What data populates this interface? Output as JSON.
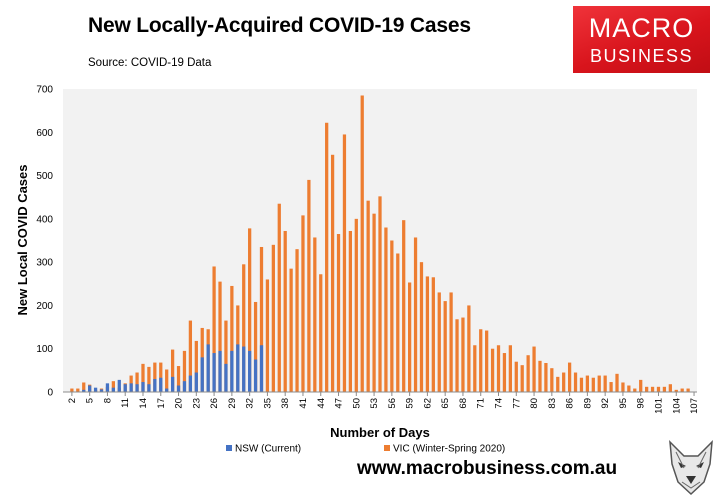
{
  "title": "New Locally-Acquired COVID-19 Cases",
  "subtitle": "Source: COVID-19 Data",
  "logo": {
    "line1": "MACRO",
    "line2": "BUSINESS"
  },
  "footer_url": "www.macrobusiness.com.au",
  "colors": {
    "nsw": "#4472c4",
    "vic": "#ed7d31",
    "plot_bg": "#f2f2f2",
    "logo_red": "#e3232a"
  },
  "chart_data": {
    "type": "bar",
    "xlabel": "Number of Days",
    "ylabel": "New Local COVID Cases",
    "ylim": [
      0,
      700
    ],
    "yticks": [
      0,
      100,
      200,
      300,
      400,
      500,
      600,
      700
    ],
    "x_range": [
      1,
      107
    ],
    "xticks": [
      2,
      5,
      8,
      11,
      14,
      17,
      20,
      23,
      26,
      29,
      32,
      35,
      38,
      41,
      44,
      47,
      50,
      53,
      56,
      59,
      62,
      65,
      68,
      71,
      74,
      77,
      80,
      83,
      86,
      89,
      92,
      95,
      98,
      101,
      104,
      107
    ],
    "legend_position": "bottom",
    "series": [
      {
        "name": "NSW (Current)",
        "color": "#4472c4",
        "x": [
          1,
          2,
          3,
          4,
          5,
          6,
          7,
          8,
          9,
          10,
          11,
          12,
          13,
          14,
          15,
          16,
          17,
          18,
          19,
          20,
          21,
          22,
          23,
          24,
          25,
          26,
          27,
          28,
          29,
          30,
          31,
          32,
          33,
          34
        ],
        "values": [
          0,
          0,
          0,
          5,
          15,
          10,
          6,
          20,
          10,
          28,
          18,
          20,
          18,
          23,
          18,
          30,
          33,
          8,
          35,
          15,
          25,
          38,
          45,
          80,
          110,
          90,
          95,
          65,
          95,
          110,
          105,
          95,
          75,
          108
        ]
      },
      {
        "name": "VIC (Winter-Spring 2020)",
        "color": "#ed7d31",
        "x": [
          1,
          2,
          3,
          4,
          5,
          6,
          7,
          8,
          9,
          10,
          11,
          12,
          13,
          14,
          15,
          16,
          17,
          18,
          19,
          20,
          21,
          22,
          23,
          24,
          25,
          26,
          27,
          28,
          29,
          30,
          31,
          32,
          33,
          34,
          35,
          36,
          37,
          38,
          39,
          40,
          41,
          42,
          43,
          44,
          45,
          46,
          47,
          48,
          49,
          50,
          51,
          52,
          53,
          54,
          55,
          56,
          57,
          58,
          59,
          60,
          61,
          62,
          63,
          64,
          65,
          66,
          67,
          68,
          69,
          70,
          71,
          72,
          73,
          74,
          75,
          76,
          77,
          78,
          79,
          80,
          81,
          82,
          83,
          84,
          85,
          86,
          87,
          88,
          89,
          90,
          91,
          92,
          93,
          94,
          95,
          96,
          97,
          98,
          99,
          100,
          101,
          102,
          103,
          104,
          105,
          106,
          107
        ],
        "values": [
          0,
          8,
          8,
          22,
          17,
          5,
          8,
          12,
          25,
          10,
          20,
          38,
          45,
          65,
          58,
          68,
          68,
          52,
          98,
          60,
          95,
          165,
          118,
          148,
          145,
          290,
          255,
          165,
          245,
          200,
          295,
          378,
          208,
          335,
          260,
          340,
          435,
          372,
          285,
          330,
          408,
          490,
          357,
          272,
          622,
          548,
          365,
          595,
          372,
          400,
          685,
          442,
          412,
          452,
          380,
          350,
          320,
          397,
          253,
          357,
          300,
          267,
          265,
          230,
          210,
          230,
          168,
          172,
          200,
          108,
          145,
          142,
          100,
          108,
          90,
          108,
          70,
          62,
          85,
          105,
          72,
          67,
          55,
          35,
          45,
          68,
          45,
          33,
          38,
          33,
          38,
          38,
          23,
          42,
          22,
          15,
          8,
          28,
          12,
          12,
          12,
          12,
          18,
          5,
          8,
          8,
          0
        ]
      }
    ]
  }
}
